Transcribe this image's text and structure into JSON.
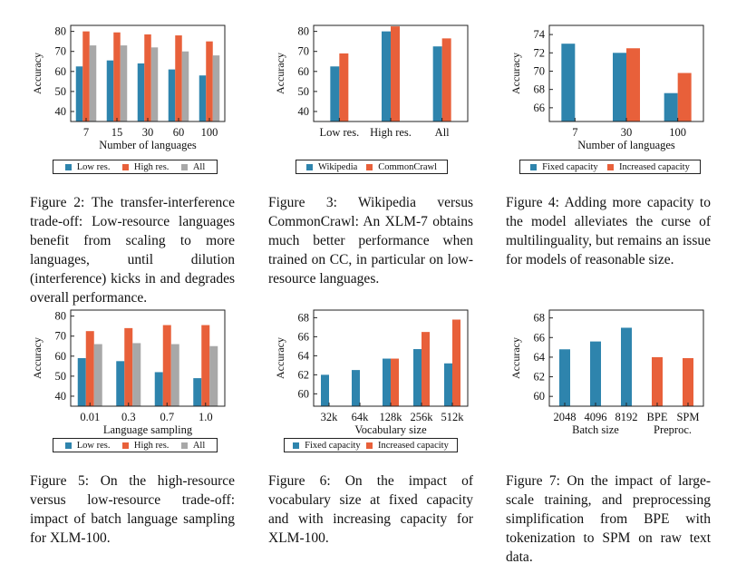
{
  "colors": {
    "blue": "#2E84AD",
    "orange": "#E8603A",
    "gray": "#A8A8A8"
  },
  "chart_data": [
    {
      "id": "fig2",
      "type": "bar",
      "categories": [
        "7",
        "15",
        "30",
        "60",
        "100"
      ],
      "xlabel": "Number of languages",
      "ylabel": "Accuracy",
      "ylim": [
        35,
        83
      ],
      "yticks": [
        40,
        50,
        60,
        70,
        80
      ],
      "series": [
        {
          "name": "Low res.",
          "color": "blue",
          "values": [
            62.5,
            65.5,
            64,
            61,
            58
          ]
        },
        {
          "name": "High res.",
          "color": "orange",
          "values": [
            80,
            79.5,
            78.5,
            78,
            75
          ]
        },
        {
          "name": "All",
          "color": "gray",
          "values": [
            73,
            73,
            72,
            70,
            68
          ]
        }
      ]
    },
    {
      "id": "fig3",
      "type": "bar",
      "categories": [
        "Low res.",
        "High res.",
        "All"
      ],
      "xlabel": "",
      "ylabel": "Accuracy",
      "ylim": [
        35,
        83
      ],
      "yticks": [
        40,
        50,
        60,
        70,
        80
      ],
      "series": [
        {
          "name": "Wikipedia",
          "color": "blue",
          "values": [
            62.5,
            80,
            72.5
          ]
        },
        {
          "name": "CommonCrawl",
          "color": "orange",
          "values": [
            69,
            82.5,
            76.5
          ]
        }
      ]
    },
    {
      "id": "fig4",
      "type": "bar",
      "categories": [
        "7",
        "30",
        "100"
      ],
      "xlabel": "Number of languages",
      "ylabel": "Accuracy",
      "ylim": [
        64.5,
        75
      ],
      "yticks": [
        66,
        68,
        70,
        72,
        74
      ],
      "series": [
        {
          "name": "Fixed capacity",
          "color": "blue",
          "values": [
            73,
            72,
            67.6
          ]
        },
        {
          "name": "Increased capacity",
          "color": "orange",
          "values": [
            null,
            72.5,
            69.8
          ]
        }
      ]
    },
    {
      "id": "fig5",
      "type": "bar",
      "categories": [
        "0.01",
        "0.3",
        "0.7",
        "1.0"
      ],
      "xlabel": "Language sampling",
      "ylabel": "Accuracy",
      "ylim": [
        35,
        83
      ],
      "yticks": [
        40,
        50,
        60,
        70,
        80
      ],
      "series": [
        {
          "name": "Low res.",
          "color": "blue",
          "values": [
            59,
            57.5,
            52,
            49
          ]
        },
        {
          "name": "High res.",
          "color": "orange",
          "values": [
            72.5,
            74,
            75.5,
            75.5
          ]
        },
        {
          "name": "All",
          "color": "gray",
          "values": [
            66,
            66.5,
            66,
            65
          ]
        }
      ]
    },
    {
      "id": "fig6",
      "type": "bar",
      "categories": [
        "32k",
        "64k",
        "128k",
        "256k",
        "512k"
      ],
      "xlabel": "Vocabulary size",
      "ylabel": "Accuracy",
      "ylim": [
        58.7,
        68.8
      ],
      "yticks": [
        60,
        62,
        64,
        66,
        68
      ],
      "series": [
        {
          "name": "Fixed capacity",
          "color": "blue",
          "values": [
            62,
            62.5,
            63.7,
            64.7,
            63.2
          ]
        },
        {
          "name": "Increased capacity",
          "color": "orange",
          "values": [
            null,
            null,
            63.7,
            66.5,
            67.8
          ]
        }
      ]
    },
    {
      "id": "fig7",
      "type": "bar",
      "categories": [
        "2048",
        "4096",
        "8192",
        "BPE",
        "SPM"
      ],
      "xlabel": "Batch size",
      "xlabel2": "Preproc.",
      "ylabel": "Accuracy",
      "ylim": [
        59,
        68.8
      ],
      "yticks": [
        60,
        62,
        64,
        66,
        68
      ],
      "series": [
        {
          "name": "Batch",
          "color": "blue",
          "values": [
            64.8,
            65.6,
            67,
            null,
            null
          ]
        },
        {
          "name": "Preproc",
          "color": "orange",
          "values": [
            null,
            null,
            null,
            64,
            63.9
          ]
        }
      ]
    }
  ],
  "legends": {
    "fig2": [
      "Low res.",
      "High res.",
      "All"
    ],
    "fig3": [
      "Wikipedia",
      "CommonCrawl"
    ],
    "fig4": [
      "Fixed capacity",
      "Increased capacity"
    ],
    "fig5": [
      "Low res.",
      "High res.",
      "All"
    ],
    "fig6": [
      "Fixed capacity",
      "Increased capacity"
    ]
  },
  "captions": {
    "fig2": "Figure 2: The transfer-interference trade-off: Low-resource languages benefit from scaling to more languages, until dilution (interference) kicks in and degrades overall performance.",
    "fig3": "Figure 3: Wikipedia versus CommonCrawl: An XLM-7 obtains much better performance when trained on CC, in particular on low-resource languages.",
    "fig4": "Figure 4: Adding more capacity to the model alleviates the curse of multilinguality, but remains an issue for models of reasonable size.",
    "fig5": "Figure 5: On the high-resource versus low-resource trade-off: impact of batch language sampling for XLM-100.",
    "fig6": "Figure 6: On the impact of vocabulary size at fixed capacity and with increasing capacity for XLM-100.",
    "fig7": "Figure 7: On the impact of large-scale training, and preprocessing simplification from BPE with tokenization to SPM on raw text data."
  }
}
